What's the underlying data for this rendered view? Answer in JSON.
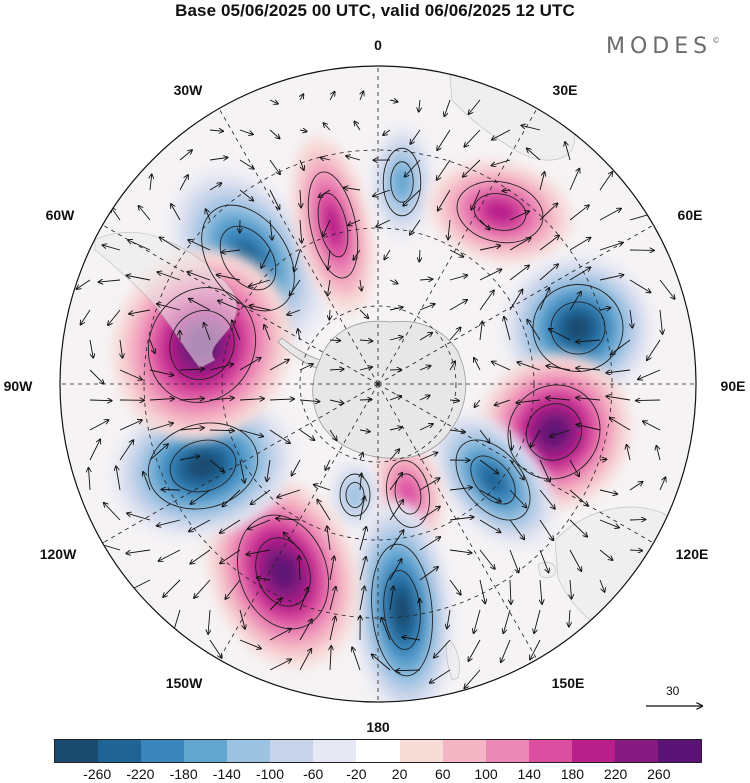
{
  "title": "Base 05/06/2025 00 UTC, valid 06/06/2025 12 UTC",
  "brand": "MODES",
  "brand_mark": "©",
  "longitude_labels": {
    "lon_0": "0",
    "lon_30e": "30E",
    "lon_60e": "60E",
    "lon_90e": "90E",
    "lon_120e": "120E",
    "lon_150e": "150E",
    "lon_180": "180",
    "lon_150w": "150W",
    "lon_120w": "120W",
    "lon_90w": "90W",
    "lon_60w": "60W",
    "lon_30w": "30W"
  },
  "reference_vector": "30",
  "colorbar": {
    "colors": [
      "#1a4a6e",
      "#1f6494",
      "#3a86bc",
      "#62a6d0",
      "#9dc3e2",
      "#c8d4ea",
      "#e6e8f3",
      "#ffffff",
      "#f7dcd8",
      "#f4b6c4",
      "#ec88b5",
      "#dc4fa0",
      "#b91f8b",
      "#861a80",
      "#5b1475"
    ],
    "tick_labels": [
      "-260",
      "-220",
      "-180",
      "-140",
      "-100",
      "-60",
      "-20",
      "20",
      "60",
      "100",
      "140",
      "180",
      "220",
      "260"
    ]
  },
  "anomalies": [
    {
      "name": "low-south-atlantic",
      "sign": "negative",
      "magnitude": 240
    },
    {
      "name": "high-weddell-sector",
      "sign": "positive",
      "magnitude": 190
    },
    {
      "name": "low-near-greenwich",
      "sign": "negative",
      "magnitude": 160
    },
    {
      "name": "high-southern-indian-ocean",
      "sign": "positive",
      "magnitude": 200
    },
    {
      "name": "low-kerguelen-sector",
      "sign": "negative",
      "magnitude": 260
    },
    {
      "name": "high-southern-ocean-south-of-australia",
      "sign": "positive",
      "magnitude": 260
    },
    {
      "name": "low-south-of-tasmania",
      "sign": "negative",
      "magnitude": 220
    },
    {
      "name": "high-ross-sea",
      "sign": "positive",
      "magnitude": 140
    },
    {
      "name": "low-ross-sea",
      "sign": "negative",
      "magnitude": 100
    },
    {
      "name": "low-south-pacific",
      "sign": "negative",
      "magnitude": 260
    },
    {
      "name": "high-south-pacific",
      "sign": "positive",
      "magnitude": 260
    },
    {
      "name": "low-amundsen-sea",
      "sign": "negative",
      "magnitude": 260
    },
    {
      "name": "high-drake-passage",
      "sign": "positive",
      "magnitude": 260
    }
  ]
}
